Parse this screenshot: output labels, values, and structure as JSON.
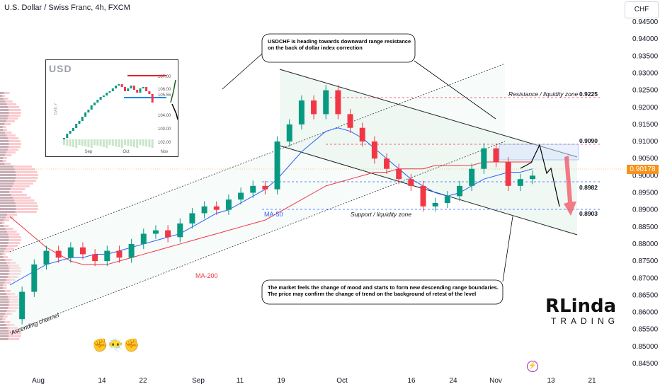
{
  "header": {
    "title": "U.S. Dollar / Swiss Franc, 4h, FXCM"
  },
  "currency_badge": "CHF",
  "last_price": "0.90178",
  "annotations": {
    "top": "USDCHF is heading towards downward range resistance\non the back of dollar index correction",
    "bottom": "The market feels the change of mood and starts to form new descending range boundaries.\nThe price may confirm the change of trend on the background of retest of the level"
  },
  "zones": {
    "resistance": "Resistance / liquidity zone",
    "support": "Support / liquidity zone",
    "channel": "Ascending channel"
  },
  "levels": {
    "l1": "0.9225",
    "l2": "0.9090",
    "l3": "0.8982",
    "l4": "0.8903"
  },
  "ma_labels": {
    "ma50": "MA-50",
    "ma200": "MA-200"
  },
  "inset": {
    "title": "USD",
    "side_label": "DAILY",
    "y_ticks": [
      "107.00",
      "106.00",
      "105.55",
      "104.00",
      "103.00",
      "102.00"
    ],
    "x_ticks": [
      "Sep",
      "Oct",
      "Nov"
    ]
  },
  "logo": {
    "main": "RLinda",
    "sub": "TRADING"
  },
  "colors": {
    "up": "#089981",
    "down": "#f23645",
    "ma50": "#2962ff",
    "ma200": "#f23645",
    "fill": "#e8f5ee",
    "price": "#f7931a",
    "arrow": "#f25a6a"
  },
  "chart_data": {
    "type": "line",
    "title": "U.S. Dollar / Swiss Franc, 4h, FXCM",
    "y_ticks": [
      0.945,
      0.94,
      0.935,
      0.93,
      0.925,
      0.92,
      0.915,
      0.91,
      0.905,
      0.9,
      0.895,
      0.89,
      0.885,
      0.88,
      0.875,
      0.87,
      0.865,
      0.86,
      0.855,
      0.85,
      0.845
    ],
    "y_tick_labels": [
      "0.94500",
      "0.94000",
      "0.93500",
      "0.93000",
      "0.92500",
      "0.92000",
      "0.91500",
      "0.91000",
      "0.90500",
      "0.90000",
      "0.89500",
      "0.89000",
      "0.88500",
      "0.88000",
      "0.87500",
      "0.87000",
      "0.86500",
      "0.86000",
      "0.85500",
      "0.85000",
      "0.84500"
    ],
    "x_tick_labels": [
      "Aug",
      "14",
      "22",
      "Sep",
      "11",
      "19",
      "Oct",
      "16",
      "24",
      "Nov",
      "13",
      "21"
    ],
    "ylim": [
      0.8425,
      0.9475
    ],
    "series": [
      {
        "name": "USDCHF",
        "values": [
          0.858,
          0.866,
          0.874,
          0.878,
          0.876,
          0.879,
          0.877,
          0.875,
          0.878,
          0.876,
          0.88,
          0.883,
          0.884,
          0.882,
          0.886,
          0.889,
          0.891,
          0.89,
          0.893,
          0.895,
          0.897,
          0.896,
          0.91,
          0.915,
          0.922,
          0.918,
          0.925,
          0.918,
          0.914,
          0.91,
          0.905,
          0.902,
          0.899,
          0.897,
          0.891,
          0.892,
          0.894,
          0.897,
          0.902,
          0.908,
          0.904,
          0.897,
          0.899,
          0.9
        ]
      },
      {
        "name": "MA-50",
        "values": [
          0.868,
          0.87,
          0.872,
          0.874,
          0.875,
          0.876,
          0.876,
          0.877,
          0.877,
          0.878,
          0.879,
          0.88,
          0.881,
          0.882,
          0.883,
          0.885,
          0.887,
          0.889,
          0.89,
          0.892,
          0.894,
          0.896,
          0.899,
          0.903,
          0.907,
          0.91,
          0.913,
          0.914,
          0.913,
          0.911,
          0.908,
          0.905,
          0.902,
          0.899,
          0.897,
          0.895,
          0.894,
          0.895,
          0.897,
          0.899,
          0.9,
          0.901,
          0.901,
          0.902
        ]
      },
      {
        "name": "MA-200",
        "values": [
          0.888,
          0.885,
          0.882,
          0.879,
          0.877,
          0.875,
          0.874,
          0.874,
          0.874,
          0.875,
          0.876,
          0.877,
          0.878,
          0.879,
          0.88,
          0.881,
          0.882,
          0.883,
          0.884,
          0.885,
          0.886,
          0.887,
          0.889,
          0.891,
          0.893,
          0.895,
          0.897,
          0.898,
          0.899,
          0.9,
          0.901,
          0.901,
          0.902,
          0.902,
          0.902,
          0.903,
          0.903,
          0.903,
          0.903,
          0.904,
          0.904,
          0.904,
          0.904,
          0.904
        ]
      }
    ],
    "horizontal_levels": [
      0.9225,
      0.909,
      0.8982,
      0.8903
    ],
    "grid": false
  }
}
